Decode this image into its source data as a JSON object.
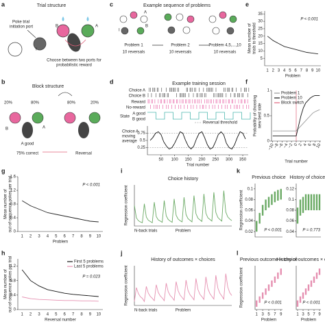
{
  "panel_labels": [
    "a",
    "c",
    "e",
    "b",
    "d",
    "f",
    "g",
    "i",
    "k",
    "h",
    "j",
    "l"
  ],
  "diagrams": {
    "a": {
      "title": "Trial structure",
      "initiation": [
        "Poke trial",
        "initiation port"
      ],
      "choose": [
        "Choose between two ports for",
        "probabilistic reward"
      ],
      "letters": [
        "I",
        "B",
        "A"
      ]
    },
    "c": {
      "title": "Example sequence of problems",
      "steps": [
        {
          "name": "Problem 1",
          "reversals": "10 reversals"
        },
        {
          "name": "Problem 2",
          "reversals": "10 reversals"
        },
        {
          "name": "Problem 4,5,...,10",
          "reversals": "10 reversals"
        }
      ],
      "letters": [
        "A",
        "B",
        "I"
      ]
    },
    "b": {
      "title": "Block structure",
      "left_pcts": [
        "20%",
        "80%"
      ],
      "right_pcts": [
        "80%",
        "20%"
      ],
      "ports": [
        "B",
        "A"
      ],
      "state": "A good",
      "correct": "75% correct",
      "reversal": "Reversal"
    },
    "d": {
      "title": "Example training session",
      "rows": [
        "Choice A",
        "Choice B",
        "Reward",
        "No-reward"
      ],
      "state": "State",
      "states": [
        "A good",
        "B good"
      ],
      "average": [
        "Choice A",
        "moving",
        "average"
      ]
    }
  },
  "chart_data": [
    {
      "type": "line",
      "categories": [
        "1",
        "2",
        "3",
        "4",
        "5",
        "6",
        "7",
        "8",
        "9",
        "10"
      ],
      "values": [
        20,
        17,
        15,
        13,
        12,
        11,
        10,
        9,
        8.5,
        8
      ],
      "color": "#222222",
      "ylim": [
        0,
        37
      ],
      "yticks": [
        5,
        10,
        15,
        20,
        25,
        30,
        35
      ],
      "xlabel": "Problem",
      "ylabel": [
        "Mean number of",
        "trials to threshold"
      ],
      "annotation": "P < 0.001"
    },
    {
      "type": "line",
      "x": [
        10,
        20,
        30,
        40,
        50,
        60,
        70,
        80,
        90,
        100,
        110,
        120,
        130,
        140,
        150,
        160,
        170,
        180,
        190,
        200,
        210,
        220,
        230,
        240,
        250,
        260,
        270,
        280,
        290,
        300,
        310,
        320,
        330,
        340,
        350,
        360
      ],
      "values": [
        0.5,
        0.6,
        0.75,
        0.8,
        0.7,
        0.45,
        0.3,
        0.2,
        0.25,
        0.4,
        0.6,
        0.8,
        0.75,
        0.5,
        0.3,
        0.2,
        0.3,
        0.55,
        0.75,
        0.8,
        0.6,
        0.35,
        0.2,
        0.25,
        0.45,
        0.7,
        0.8,
        0.7,
        0.4,
        0.25,
        0.2,
        0.35,
        0.6,
        0.8,
        0.75,
        0.55
      ],
      "color": "#111111",
      "xlim": [
        0,
        370
      ],
      "ylim": [
        0,
        1
      ],
      "yticks": [
        0.25,
        0.5,
        0.75
      ],
      "xticks": [
        50,
        100,
        150,
        200,
        250,
        300,
        350
      ],
      "xlabel": "Trial number",
      "hlines": {
        "name": "Reversal threshold",
        "values": [
          0.75,
          0.25
        ],
        "color": "#888888"
      }
    },
    {
      "type": "line",
      "x": [
        -10,
        -9,
        -8,
        -7,
        -6,
        -5,
        -4,
        -3,
        -2,
        -1,
        0,
        1,
        2,
        3,
        4,
        5,
        6,
        7,
        8,
        9,
        10
      ],
      "xlim": [
        -10.5,
        10.5
      ],
      "ylim": [
        0,
        1
      ],
      "yticks": [
        0,
        0.5,
        1
      ],
      "xticks": [
        {
          "value": -10,
          "label": "−10"
        },
        {
          "value": -8,
          "label": "−8"
        },
        {
          "value": -6,
          "label": "−6"
        },
        {
          "value": -4,
          "label": "−4"
        },
        {
          "value": -2,
          "label": "−2"
        },
        0,
        2,
        4,
        6,
        8,
        10
      ],
      "series": [
        {
          "name": "Problem 1",
          "color": "#999999",
          "values": [
            0.2,
            0.2,
            0.2,
            0.2,
            0.2,
            0.2,
            0.2,
            0.2,
            0.2,
            0.2,
            0.2,
            0.25,
            0.3,
            0.35,
            0.4,
            0.45,
            0.5,
            0.55,
            0.58,
            0.6,
            0.62
          ]
        },
        {
          "name": "Problem 10",
          "color": "#111111",
          "values": [
            0.1,
            0.1,
            0.1,
            0.1,
            0.1,
            0.1,
            0.1,
            0.1,
            0.1,
            0.1,
            0.1,
            0.3,
            0.5,
            0.65,
            0.75,
            0.8,
            0.85,
            0.88,
            0.9,
            0.9,
            0.9
          ]
        }
      ],
      "markers": [
        {
          "name": "Block switch",
          "color": "#e0607a",
          "x": 0
        }
      ],
      "legend": "upper left",
      "xlabel": "Trial number",
      "ylabel": [
        "Probability of choosing",
        "new best side"
      ]
    },
    {
      "type": "line",
      "categories": [
        "1",
        "2",
        "3",
        "4",
        "5",
        "6",
        "7",
        "8",
        "9",
        "10"
      ],
      "values": [
        0.9,
        0.75,
        0.65,
        0.55,
        0.5,
        0.45,
        0.4,
        0.35,
        0.3,
        0.28
      ],
      "color": "#222222",
      "ylim": [
        0,
        1.6
      ],
      "yticks": [
        0,
        0.4,
        0.8,
        1.2,
        1.6
      ],
      "xlabel": "Problem",
      "ylabel": [
        "Mean number of",
        "out-of-sequence pokes per trial"
      ],
      "annotation": "P < 0.001"
    },
    {
      "type": "line",
      "categories": [
        "1",
        "2",
        "3",
        "4",
        "5",
        "6",
        "7",
        "8",
        "9",
        "10"
      ],
      "ylim": [
        0,
        1.4
      ],
      "yticks": [
        0,
        0.4,
        0.8,
        1.2
      ],
      "series": [
        {
          "name": "First 5 problems",
          "color": "#111111",
          "values": [
            1.1,
            0.8,
            0.65,
            0.55,
            0.5,
            0.45,
            0.42,
            0.4,
            0.38,
            0.36
          ]
        },
        {
          "name": "Last 5 problems",
          "color": "#e58fb0",
          "values": [
            0.35,
            0.3,
            0.28,
            0.27,
            0.26,
            0.25,
            0.25,
            0.24,
            0.24,
            0.23
          ]
        }
      ],
      "legend": "upper right",
      "annotation": "P = 0.023",
      "xlabel": "Reversal number",
      "ylabel": [
        "Mean number of",
        "out-of-sequence pokes per trial"
      ]
    },
    {
      "type": "line",
      "title": "Choice history",
      "color": "#6aaa64",
      "ylim": [
        0,
        1
      ],
      "values": [
        0.5,
        0.2,
        0.13,
        0.1,
        0.08,
        0.54,
        0.22,
        0.14,
        0.11,
        0.08,
        0.58,
        0.23,
        0.15,
        0.12,
        0.09,
        0.62,
        0.25,
        0.16,
        0.12,
        0.09,
        0.66,
        0.26,
        0.17,
        0.13,
        0.1,
        0.7,
        0.28,
        0.18,
        0.14,
        0.1,
        0.74,
        0.3,
        0.19,
        0.15,
        0.11,
        0.78,
        0.31,
        0.2,
        0.16,
        0.12,
        0.82,
        0.33,
        0.21,
        0.16,
        0.12,
        0.86,
        0.34,
        0.22,
        0.17,
        0.13
      ],
      "xlabel": "Problem",
      "xlabel2": "N-back trials",
      "ylabel": [
        "Regression coefficient"
      ]
    },
    {
      "type": "line",
      "title": "History of outcomes × choices",
      "color": "#e58fb0",
      "ylim": [
        0,
        1
      ],
      "values": [
        0.1,
        0.45,
        0.3,
        0.22,
        0.18,
        0.1,
        0.48,
        0.31,
        0.23,
        0.18,
        0.12,
        0.52,
        0.33,
        0.24,
        0.19,
        0.12,
        0.56,
        0.35,
        0.25,
        0.2,
        0.13,
        0.6,
        0.37,
        0.26,
        0.2,
        0.14,
        0.64,
        0.38,
        0.27,
        0.21,
        0.14,
        0.68,
        0.4,
        0.28,
        0.22,
        0.15,
        0.72,
        0.42,
        0.3,
        0.23,
        0.16,
        0.76,
        0.44,
        0.31,
        0.24,
        0.16,
        0.8,
        0.46,
        0.32,
        0.25
      ],
      "xlabel": "Problem",
      "xlabel2": "N-back trials",
      "ylabel": [
        "Regression coefficient"
      ]
    },
    {
      "type": "errorbar",
      "title": "Previous choice",
      "color": "#6aaa64",
      "x": [
        1,
        2,
        3,
        4,
        5,
        6,
        7,
        8,
        9
      ],
      "xlim": [
        0.5,
        9.5
      ],
      "values": [
        0.03,
        0.045,
        0.06,
        0.07,
        0.075,
        0.08,
        0.085,
        0.088,
        0.09
      ],
      "errors": [
        0.01,
        0.01,
        0.01,
        0.01,
        0.01,
        0.01,
        0.01,
        0.01,
        0.01
      ],
      "ylim": [
        0.01,
        0.11
      ],
      "yticks": [
        0.02,
        0.04,
        0.06,
        0.08,
        0.1
      ],
      "annotation": "P < 0.001",
      "ylabel": [
        "Regression coefficient"
      ]
    },
    {
      "type": "errorbar",
      "title": "History of choices",
      "color": "#6aaa64",
      "x": [
        1,
        2,
        3,
        4,
        5,
        6,
        7,
        8,
        9
      ],
      "xlim": [
        0.5,
        9.5
      ],
      "values": [
        0.07,
        0.085,
        0.09,
        0.095,
        0.095,
        0.095,
        0.095,
        0.095,
        0.095
      ],
      "errors": [
        0.015,
        0.015,
        0.015,
        0.015,
        0.015,
        0.015,
        0.015,
        0.015,
        0.015
      ],
      "ylim": [
        0.03,
        0.13
      ],
      "yticks": [
        0.04,
        0.06,
        0.08,
        0.1,
        0.12
      ],
      "annotation": "P = 0.773"
    },
    {
      "type": "errorbar",
      "title": "Previous outcome × choice",
      "color": "#e58fb0",
      "x": [
        1,
        2,
        3,
        4,
        5,
        6,
        7,
        8,
        9
      ],
      "xlim": [
        0.5,
        9.5
      ],
      "xticks": [
        1,
        3,
        5,
        7,
        9
      ],
      "values": [
        0.03,
        0.04,
        0.05,
        0.06,
        0.07,
        0.08,
        0.09,
        0.1,
        0.11
      ],
      "errors": [
        0.008,
        0.008,
        0.008,
        0.008,
        0.008,
        0.008,
        0.008,
        0.008,
        0.008
      ],
      "ylim": [
        0.015,
        0.125
      ],
      "annotation": "P < 0.001",
      "xlabel": "Problem",
      "ylabel": [
        "Regression coefficient"
      ]
    },
    {
      "type": "errorbar",
      "title": "History of outcomes × choices",
      "color": "#e58fb0",
      "x": [
        1,
        2,
        3,
        4,
        5,
        6,
        7,
        8,
        9
      ],
      "xlim": [
        0.5,
        9.5
      ],
      "xticks": [
        1,
        3,
        5,
        7,
        9
      ],
      "values": [
        0.03,
        0.04,
        0.05,
        0.06,
        0.07,
        0.08,
        0.09,
        0.1,
        0.11
      ],
      "errors": [
        0.008,
        0.008,
        0.008,
        0.008,
        0.008,
        0.008,
        0.008,
        0.008,
        0.008
      ],
      "ylim": [
        0.015,
        0.125
      ],
      "annotation": "P < 0.001",
      "xlabel": "Problem"
    }
  ]
}
